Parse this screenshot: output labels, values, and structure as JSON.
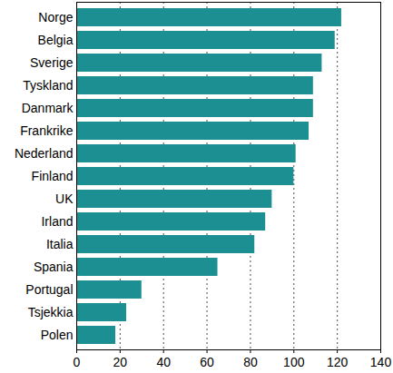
{
  "chart_data": {
    "type": "bar",
    "orientation": "horizontal",
    "categories": [
      "Norge",
      "Belgia",
      "Sverige",
      "Tyskland",
      "Danmark",
      "Frankrike",
      "Nederland",
      "Finland",
      "UK",
      "Irland",
      "Italia",
      "Spania",
      "Portugal",
      "Tsjekkia",
      "Polen"
    ],
    "values": [
      122,
      119,
      113,
      109,
      109,
      107,
      101,
      100,
      90,
      87,
      82,
      65,
      30,
      23,
      18
    ],
    "color": "#1b8f91",
    "xlim": [
      0,
      140
    ],
    "xticks": [
      0,
      20,
      40,
      60,
      80,
      100,
      120,
      140
    ],
    "grid": true
  }
}
